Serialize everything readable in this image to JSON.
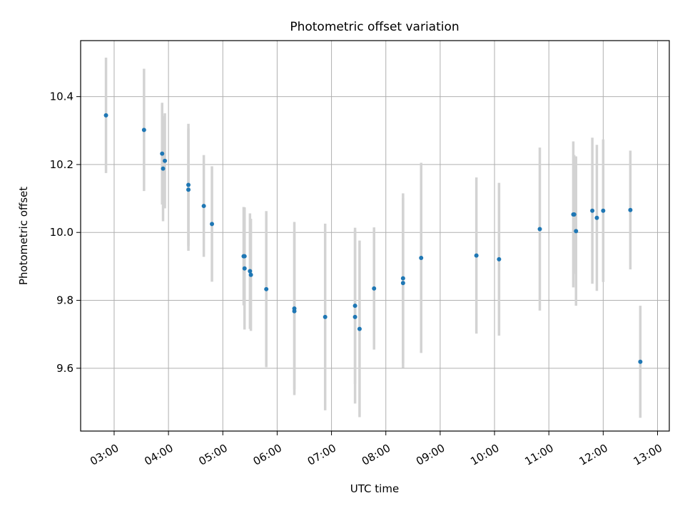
{
  "chart_data": {
    "type": "scatter",
    "title": "Photometric offset variation",
    "xlabel": "UTC time",
    "ylabel": "Photometric offset",
    "xlim": [
      "02:23",
      "13:13"
    ],
    "ylim": [
      9.415,
      10.565
    ],
    "grid": true,
    "x_ticks": [
      "03:00",
      "04:00",
      "05:00",
      "06:00",
      "07:00",
      "08:00",
      "09:00",
      "10:00",
      "11:00",
      "12:00",
      "13:00"
    ],
    "y_ticks": [
      9.6,
      9.8,
      10.0,
      10.2,
      10.4
    ],
    "y_tick_labels": [
      "9.6",
      "9.8",
      "10.0",
      "10.2",
      "10.4"
    ],
    "point_color": "#1f77b4",
    "errorbar_color": "#d3d3d3",
    "points": [
      {
        "x": "02:51",
        "y": 10.345,
        "err": 0.17
      },
      {
        "x": "03:33",
        "y": 10.302,
        "err": 0.18
      },
      {
        "x": "03:53",
        "y": 10.232,
        "err": 0.15
      },
      {
        "x": "03:54",
        "y": 10.188,
        "err": 0.155
      },
      {
        "x": "03:56",
        "y": 10.211,
        "err": 0.14
      },
      {
        "x": "04:22",
        "y": 10.14,
        "err": 0.18
      },
      {
        "x": "04:22",
        "y": 10.126,
        "err": 0.18
      },
      {
        "x": "04:39",
        "y": 10.078,
        "err": 0.15
      },
      {
        "x": "04:48",
        "y": 10.025,
        "err": 0.17
      },
      {
        "x": "05:23",
        "y": 9.93,
        "err": 0.145
      },
      {
        "x": "05:24",
        "y": 9.93,
        "err": 0.14
      },
      {
        "x": "05:24",
        "y": 9.894,
        "err": 0.18
      },
      {
        "x": "05:30",
        "y": 9.886,
        "err": 0.17
      },
      {
        "x": "05:31",
        "y": 9.875,
        "err": 0.165
      },
      {
        "x": "05:48",
        "y": 9.833,
        "err": 0.23
      },
      {
        "x": "06:19",
        "y": 9.776,
        "err": 0.255
      },
      {
        "x": "06:19",
        "y": 9.768,
        "err": 0.23
      },
      {
        "x": "06:53",
        "y": 9.751,
        "err": 0.275
      },
      {
        "x": "07:26",
        "y": 9.784,
        "err": 0.23
      },
      {
        "x": "07:26",
        "y": 9.751,
        "err": 0.255
      },
      {
        "x": "07:31",
        "y": 9.716,
        "err": 0.26
      },
      {
        "x": "07:47",
        "y": 9.835,
        "err": 0.18
      },
      {
        "x": "08:19",
        "y": 9.865,
        "err": 0.25
      },
      {
        "x": "08:19",
        "y": 9.851,
        "err": 0.25
      },
      {
        "x": "08:39",
        "y": 9.925,
        "err": 0.28
      },
      {
        "x": "09:40",
        "y": 9.932,
        "err": 0.23
      },
      {
        "x": "10:05",
        "y": 9.921,
        "err": 0.225
      },
      {
        "x": "10:50",
        "y": 10.01,
        "err": 0.24
      },
      {
        "x": "11:27",
        "y": 10.053,
        "err": 0.215
      },
      {
        "x": "11:28",
        "y": 10.053,
        "err": 0.175
      },
      {
        "x": "11:30",
        "y": 10.004,
        "err": 0.22
      },
      {
        "x": "11:48",
        "y": 10.064,
        "err": 0.215
      },
      {
        "x": "11:53",
        "y": 10.043,
        "err": 0.215
      },
      {
        "x": "12:00",
        "y": 10.064,
        "err": 0.21
      },
      {
        "x": "12:30",
        "y": 10.066,
        "err": 0.175
      },
      {
        "x": "12:41",
        "y": 9.619,
        "err": 0.165
      }
    ]
  }
}
